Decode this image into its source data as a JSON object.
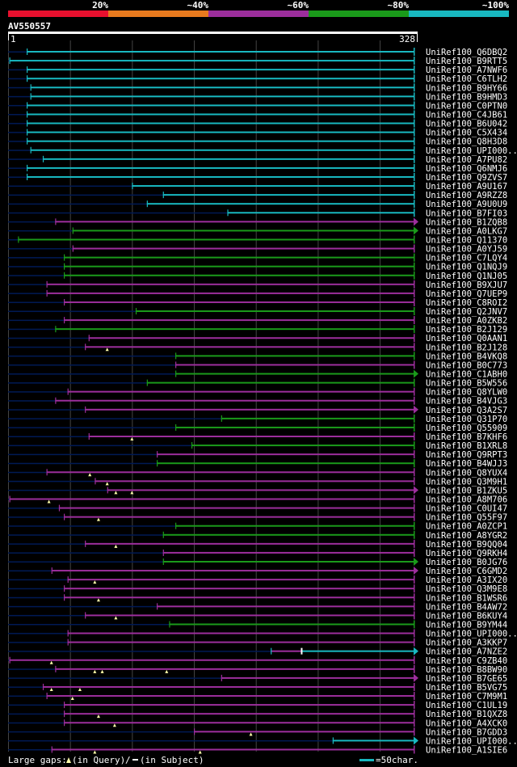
{
  "legend": {
    "labels": [
      "20%",
      "~40%",
      "~60%",
      "~80%",
      "~100%"
    ],
    "colors": [
      "#e8102e",
      "#e87a1e",
      "#9c2e9c",
      "#1a9a1a",
      "#18b8c0"
    ]
  },
  "query": {
    "name": "AV550557",
    "start": "1",
    "end": "328",
    "length": 328
  },
  "colors": {
    "dark": "#001a55",
    "gap": "#ffffaa",
    "grid": "#444444"
  },
  "footer": {
    "gaps_label": "Large gaps:",
    "query_gap_text": "(in Query)",
    "separator": "/",
    "subject_gap_text": "(in Subject)",
    "scale_label": "=50char."
  },
  "rows": [
    {
      "id": "UniRef100_Q6DBQ2",
      "color": "cyan",
      "s": 0,
      "e": 328,
      "b": 15,
      "arrow": false
    },
    {
      "id": "UniRef100_B9RTT5",
      "color": "cyan",
      "s": 0,
      "e": 328,
      "b": 1,
      "arrow": false
    },
    {
      "id": "UniRef100_A7NWF6",
      "color": "cyan",
      "s": 0,
      "e": 328,
      "b": 15,
      "arrow": false
    },
    {
      "id": "UniRef100_C6TLH2",
      "color": "cyan",
      "s": 0,
      "e": 328,
      "b": 15,
      "arrow": false
    },
    {
      "id": "UniRef100_B9HY66",
      "color": "cyan",
      "s": 0,
      "e": 328,
      "b": 18,
      "arrow": false
    },
    {
      "id": "UniRef100_B9HMD3",
      "color": "cyan",
      "s": 0,
      "e": 328,
      "b": 18,
      "arrow": false
    },
    {
      "id": "UniRef100_C0PTN0",
      "color": "cyan",
      "s": 0,
      "e": 328,
      "b": 15,
      "arrow": false
    },
    {
      "id": "UniRef100_C4JB61",
      "color": "cyan",
      "s": 0,
      "e": 328,
      "b": 15,
      "arrow": false
    },
    {
      "id": "UniRef100_B6U042",
      "color": "cyan",
      "s": 0,
      "e": 328,
      "b": 15,
      "arrow": false
    },
    {
      "id": "UniRef100_C5X434",
      "color": "cyan",
      "s": 0,
      "e": 328,
      "b": 15,
      "arrow": false
    },
    {
      "id": "UniRef100_Q8H3D8",
      "color": "cyan",
      "s": 0,
      "e": 328,
      "b": 15,
      "arrow": false
    },
    {
      "id": "UniRef100_UPI000..",
      "color": "cyan",
      "s": 0,
      "e": 328,
      "b": 18,
      "arrow": false
    },
    {
      "id": "UniRef100_A7PU82",
      "color": "cyan",
      "s": 0,
      "e": 328,
      "b": 28,
      "arrow": false
    },
    {
      "id": "UniRef100_Q6NMJ6",
      "color": "cyan",
      "s": 0,
      "e": 328,
      "b": 15,
      "arrow": false
    },
    {
      "id": "UniRef100_Q9ZVS7",
      "color": "cyan",
      "s": 0,
      "e": 328,
      "b": 15,
      "arrow": false
    },
    {
      "id": "UniRef100_A9U167",
      "color": "cyan",
      "s": 0,
      "e": 328,
      "b": 100,
      "arrow": false
    },
    {
      "id": "UniRef100_A9RZZ8",
      "color": "cyan",
      "s": 0,
      "e": 328,
      "b": 125,
      "arrow": false
    },
    {
      "id": "UniRef100_A9U0U9",
      "color": "cyan",
      "s": 0,
      "e": 328,
      "b": 112,
      "arrow": false
    },
    {
      "id": "UniRef100_B7FI03",
      "color": "cyan",
      "s": 0,
      "e": 328,
      "b": 177,
      "arrow": false
    },
    {
      "id": "UniRef100_B1ZQB8",
      "color": "purple",
      "s": 0,
      "e": 328,
      "b": 38,
      "arrow": true
    },
    {
      "id": "UniRef100_A0LKG7",
      "color": "green",
      "s": 0,
      "e": 328,
      "b": 52,
      "arrow": true
    },
    {
      "id": "UniRef100_Q11370",
      "color": "green",
      "s": 0,
      "e": 328,
      "b": 8,
      "arrow": false
    },
    {
      "id": "UniRef100_A0YJ59",
      "color": "purple",
      "s": 0,
      "e": 328,
      "b": 52,
      "arrow": false
    },
    {
      "id": "UniRef100_C7LQY4",
      "color": "green",
      "s": 0,
      "e": 328,
      "b": 45,
      "arrow": false
    },
    {
      "id": "UniRef100_Q1NQJ9",
      "color": "green",
      "s": 0,
      "e": 328,
      "b": 45,
      "arrow": false
    },
    {
      "id": "UniRef100_Q1NJ05",
      "color": "green",
      "s": 0,
      "e": 328,
      "b": 45,
      "arrow": false
    },
    {
      "id": "UniRef100_B9XJU7",
      "color": "purple",
      "s": 0,
      "e": 328,
      "b": 31,
      "arrow": false
    },
    {
      "id": "UniRef100_Q7UEP9",
      "color": "purple",
      "s": 0,
      "e": 328,
      "b": 31,
      "arrow": false
    },
    {
      "id": "UniRef100_C8ROI2",
      "color": "purple",
      "s": 0,
      "e": 328,
      "b": 45,
      "arrow": false
    },
    {
      "id": "UniRef100_Q2JNV7",
      "color": "green",
      "s": 0,
      "e": 328,
      "b": 103,
      "arrow": false
    },
    {
      "id": "UniRef100_A0ZKB2",
      "color": "purple",
      "s": 0,
      "e": 328,
      "b": 45,
      "arrow": false
    },
    {
      "id": "UniRef100_B2J129",
      "color": "green",
      "s": 0,
      "e": 328,
      "b": 38,
      "arrow": false
    },
    {
      "id": "UniRef100_Q0AAN1",
      "color": "purple",
      "s": 0,
      "e": 328,
      "b": 65,
      "arrow": false
    },
    {
      "id": "UniRef100_B2J128",
      "color": "purple",
      "s": 0,
      "e": 328,
      "b": 62,
      "arrow": false,
      "gaps": [
        80
      ]
    },
    {
      "id": "UniRef100_B4VKQ8",
      "color": "green",
      "s": 0,
      "e": 328,
      "b": 135,
      "arrow": false
    },
    {
      "id": "UniRef100_B0C773",
      "color": "purple",
      "s": 0,
      "e": 328,
      "b": 135,
      "arrow": false
    },
    {
      "id": "UniRef100_C1ABH0",
      "color": "green",
      "s": 0,
      "e": 328,
      "b": 135,
      "arrow": true
    },
    {
      "id": "UniRef100_B5W556",
      "color": "green",
      "s": 0,
      "e": 328,
      "b": 112,
      "arrow": false
    },
    {
      "id": "UniRef100_Q8YLW0",
      "color": "purple",
      "s": 0,
      "e": 328,
      "b": 48,
      "arrow": false
    },
    {
      "id": "UniRef100_B4VJG3",
      "color": "purple",
      "s": 0,
      "e": 328,
      "b": 38,
      "arrow": false
    },
    {
      "id": "UniRef100_Q3A2S7",
      "color": "purple",
      "s": 0,
      "e": 328,
      "b": 62,
      "arrow": true
    },
    {
      "id": "UniRef100_Q31P70",
      "color": "green",
      "s": 0,
      "e": 328,
      "b": 172,
      "arrow": false
    },
    {
      "id": "UniRef100_Q55909",
      "color": "green",
      "s": 0,
      "e": 328,
      "b": 135,
      "arrow": false
    },
    {
      "id": "UniRef100_B7KHF6",
      "color": "purple",
      "s": 0,
      "e": 328,
      "b": 65,
      "arrow": false,
      "gaps": [
        100
      ]
    },
    {
      "id": "UniRef100_B1XRL8",
      "color": "green",
      "s": 0,
      "e": 328,
      "b": 148,
      "arrow": false
    },
    {
      "id": "UniRef100_Q9RPT3",
      "color": "purple",
      "s": 0,
      "e": 328,
      "b": 120,
      "arrow": false
    },
    {
      "id": "UniRef100_B4WJJ3",
      "color": "green",
      "s": 0,
      "e": 328,
      "b": 120,
      "arrow": false
    },
    {
      "id": "UniRef100_Q8YUX4",
      "color": "purple",
      "s": 0,
      "e": 328,
      "b": 31,
      "arrow": false,
      "gaps": [
        66
      ]
    },
    {
      "id": "UniRef100_Q3M9H1",
      "color": "purple",
      "s": 0,
      "e": 328,
      "b": 70,
      "arrow": false,
      "gaps": [
        80
      ]
    },
    {
      "id": "UniRef100_B1ZKU5",
      "color": "purple",
      "s": 0,
      "e": 328,
      "b": 80,
      "arrow": true,
      "gaps": [
        87,
        100
      ]
    },
    {
      "id": "UniRef100_A8M706",
      "color": "purple",
      "s": 0,
      "e": 328,
      "b": 1,
      "arrow": false,
      "gaps": [
        33
      ]
    },
    {
      "id": "UniRef100_C0UI47",
      "color": "purple",
      "s": 0,
      "e": 328,
      "b": 41,
      "arrow": false
    },
    {
      "id": "UniRef100_Q55F97",
      "color": "purple",
      "s": 0,
      "e": 328,
      "b": 45,
      "arrow": false,
      "gaps": [
        73
      ]
    },
    {
      "id": "UniRef100_A0ZCP1",
      "color": "green",
      "s": 0,
      "e": 328,
      "b": 135,
      "arrow": false
    },
    {
      "id": "UniRef100_A8YGR2",
      "color": "green",
      "s": 0,
      "e": 328,
      "b": 125,
      "arrow": false
    },
    {
      "id": "UniRef100_B9QQ04",
      "color": "purple",
      "s": 0,
      "e": 328,
      "b": 62,
      "arrow": false,
      "gaps": [
        87
      ]
    },
    {
      "id": "UniRef100_Q9RKH4",
      "color": "purple",
      "s": 0,
      "e": 328,
      "b": 125,
      "arrow": false
    },
    {
      "id": "UniRef100_B0JG76",
      "color": "green",
      "s": 0,
      "e": 328,
      "b": 125,
      "arrow": true
    },
    {
      "id": "UniRef100_C6GMD2",
      "color": "purple",
      "s": 0,
      "e": 328,
      "b": 35,
      "arrow": true
    },
    {
      "id": "UniRef100_A3IX20",
      "color": "purple",
      "s": 0,
      "e": 328,
      "b": 48,
      "arrow": false,
      "gaps": [
        70
      ]
    },
    {
      "id": "UniRef100_Q3M9E8",
      "color": "purple",
      "s": 0,
      "e": 328,
      "b": 45,
      "arrow": false
    },
    {
      "id": "UniRef100_B1WSR6",
      "color": "purple",
      "s": 0,
      "e": 328,
      "b": 45,
      "arrow": false,
      "gaps": [
        73
      ]
    },
    {
      "id": "UniRef100_B4AW72",
      "color": "purple",
      "s": 0,
      "e": 328,
      "b": 120,
      "arrow": false
    },
    {
      "id": "UniRef100_B6KUY4",
      "color": "purple",
      "s": 0,
      "e": 328,
      "b": 62,
      "arrow": false,
      "gaps": [
        87
      ]
    },
    {
      "id": "UniRef100_B9YM44",
      "color": "green",
      "s": 0,
      "e": 328,
      "b": 130,
      "arrow": false
    },
    {
      "id": "UniRef100_UPI000..",
      "color": "purple",
      "s": 0,
      "e": 328,
      "b": 48,
      "arrow": false
    },
    {
      "id": "UniRef100_A3KKP7",
      "color": "purple",
      "s": 0,
      "e": 328,
      "b": 48,
      "arrow": false
    },
    {
      "id": "UniRef100_A7NZE2",
      "color": "mixed",
      "s": 0,
      "e": 328,
      "b": 212,
      "arrow": true,
      "gaps": [
        237
      ]
    },
    {
      "id": "UniRef100_C9ZB40",
      "color": "purple",
      "s": 0,
      "e": 328,
      "b": 1,
      "arrow": false,
      "gaps": [
        35
      ]
    },
    {
      "id": "UniRef100_B8BW90",
      "color": "purple",
      "s": 0,
      "e": 328,
      "b": 38,
      "arrow": false,
      "gaps": [
        70,
        76,
        128
      ]
    },
    {
      "id": "UniRef100_B7GE65",
      "color": "purple",
      "s": 0,
      "e": 328,
      "b": 172,
      "arrow": true
    },
    {
      "id": "UniRef100_B5VG75",
      "color": "purple",
      "s": 0,
      "e": 328,
      "b": 28,
      "arrow": false,
      "gaps": [
        35,
        58
      ]
    },
    {
      "id": "UniRef100_C7M9M1",
      "color": "purple",
      "s": 0,
      "e": 328,
      "b": 31,
      "arrow": false,
      "gaps": [
        52
      ]
    },
    {
      "id": "UniRef100_C1UL19",
      "color": "purple",
      "s": 0,
      "e": 328,
      "b": 45,
      "arrow": false
    },
    {
      "id": "UniRef100_B1QXZ8",
      "color": "purple",
      "s": 0,
      "e": 328,
      "b": 45,
      "arrow": false,
      "gaps": [
        73
      ]
    },
    {
      "id": "UniRef100_A4XCK0",
      "color": "purple",
      "s": 0,
      "e": 328,
      "b": 45,
      "arrow": false,
      "gaps": [
        86
      ]
    },
    {
      "id": "UniRef100_B7GDD3",
      "color": "purple",
      "s": 0,
      "e": 328,
      "b": 150,
      "arrow": false,
      "gaps": [
        196
      ]
    },
    {
      "id": "UniRef100_UPI000..",
      "color": "cyan",
      "s": 0,
      "e": 328,
      "b": 262,
      "arrow": true
    },
    {
      "id": "UniRef100_A1SIE6",
      "color": "purple",
      "s": 0,
      "e": 328,
      "b": 35,
      "arrow": false,
      "gaps": [
        70,
        155
      ]
    }
  ]
}
